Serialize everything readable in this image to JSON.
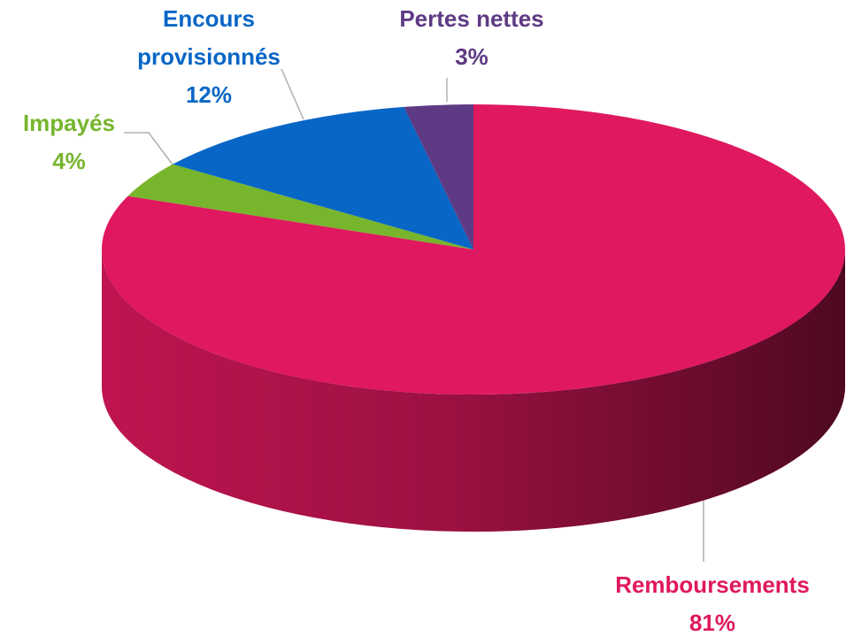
{
  "chart_data": {
    "type": "pie3d",
    "categories": [
      "Remboursements",
      "Impayés",
      "Encours provisionnés",
      "Pertes nettes"
    ],
    "values": [
      81,
      4,
      12,
      3
    ],
    "value_labels": [
      "81%",
      "4%",
      "12%",
      "3%"
    ],
    "colors": [
      "#e0185f",
      "#77b52d",
      "#0866c6",
      "#5e3a84"
    ]
  }
}
